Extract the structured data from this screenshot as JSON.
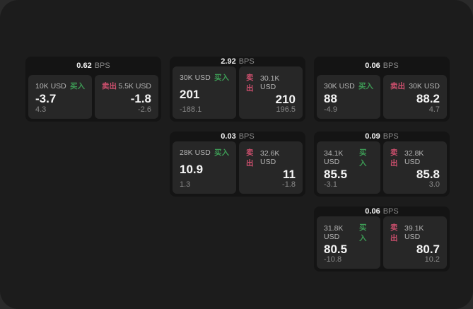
{
  "labels": {
    "bps_unit": "BPS",
    "buy": "买入",
    "sell": "卖出"
  },
  "colors": {
    "outer_bg": "#2a2a2a",
    "page_bg": "#1c1c1c",
    "card_bg": "#141414",
    "panel_bg": "#272727",
    "buy_green": "#3d9b55",
    "sell_red": "#cc4f6d",
    "value_white": "#f5f5f5",
    "muted_gray": "#8a8a8a",
    "label_gray": "#b5b5b5"
  },
  "cards": [
    {
      "bps": "0.62",
      "buy": {
        "amount": "10K USD",
        "value": "-3.7",
        "sub": "4.3"
      },
      "sell": {
        "amount": "5.5K USD",
        "value": "-1.8",
        "sub": "-2.6"
      }
    },
    {
      "bps": "2.92",
      "buy": {
        "amount": "30K USD",
        "value": "201",
        "sub": "-188.1"
      },
      "sell": {
        "amount": "30.1K USD",
        "value": "210",
        "sub": "196.5"
      }
    },
    {
      "bps": "0.06",
      "buy": {
        "amount": "30K USD",
        "value": "88",
        "sub": "-4.9"
      },
      "sell": {
        "amount": "30K USD",
        "value": "88.2",
        "sub": "4.7"
      }
    },
    {
      "bps": "0.03",
      "buy": {
        "amount": "28K USD",
        "value": "10.9",
        "sub": "1.3"
      },
      "sell": {
        "amount": "32.6K USD",
        "value": "11",
        "sub": "-1.8"
      }
    },
    {
      "bps": "0.09",
      "buy": {
        "amount": "34.1K USD",
        "value": "85.5",
        "sub": "-3.1"
      },
      "sell": {
        "amount": "32.8K USD",
        "value": "85.8",
        "sub": "3.0"
      }
    },
    {
      "bps": "0.06",
      "buy": {
        "amount": "31.8K USD",
        "value": "80.5",
        "sub": "-10.8"
      },
      "sell": {
        "amount": "39.1K USD",
        "value": "80.7",
        "sub": "10.2"
      }
    }
  ]
}
